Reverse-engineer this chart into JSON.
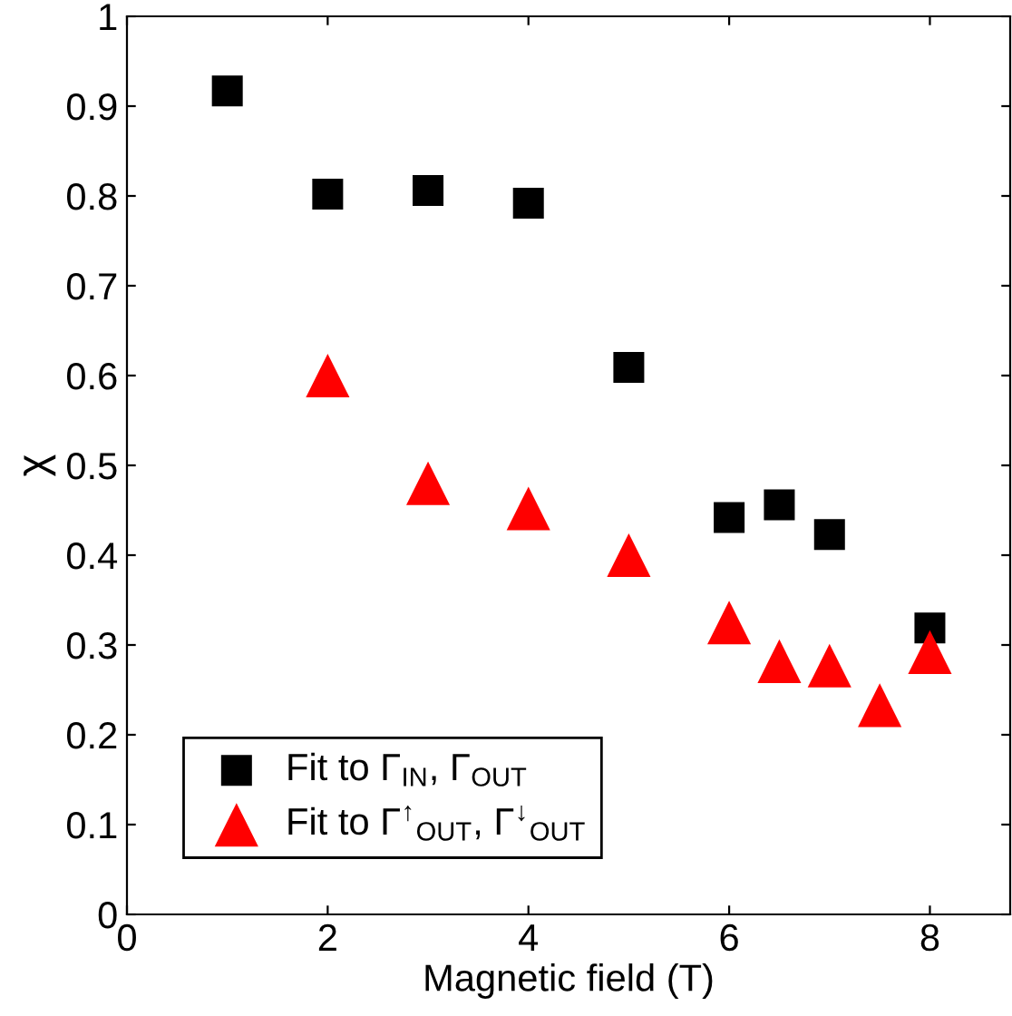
{
  "chart_data": {
    "type": "scatter",
    "xlabel": "Magnetic field (T)",
    "ylabel": "χ",
    "xlim": [
      0,
      8.8
    ],
    "ylim": [
      0,
      1
    ],
    "xticks": [
      0,
      2,
      4,
      6,
      8
    ],
    "yticks": [
      0,
      0.1,
      0.2,
      0.3,
      0.4,
      0.5,
      0.6,
      0.7,
      0.8,
      0.9,
      1
    ],
    "grid": false,
    "legend": "bottom left",
    "series": [
      {
        "name": "Fit to Γ$_{IN}$, Γ$_{OUT}$",
        "color": "#000000",
        "marker": "square",
        "x": [
          1,
          2,
          3,
          4,
          5,
          6,
          6.5,
          7,
          8
        ],
        "values": [
          0.917,
          0.802,
          0.806,
          0.792,
          0.609,
          0.442,
          0.456,
          0.423,
          0.319
        ]
      },
      {
        "name": "Fit to Γ$^{↑}$$_{OUT}$, Γ$^{↓}$$_{OUT}$",
        "color": "#ff0000",
        "marker": "triangle",
        "x": [
          2,
          3,
          4,
          5,
          6,
          6.5,
          7,
          7.5,
          8
        ],
        "values": [
          0.6,
          0.48,
          0.452,
          0.4,
          0.325,
          0.282,
          0.277,
          0.233,
          0.292
        ]
      }
    ]
  }
}
